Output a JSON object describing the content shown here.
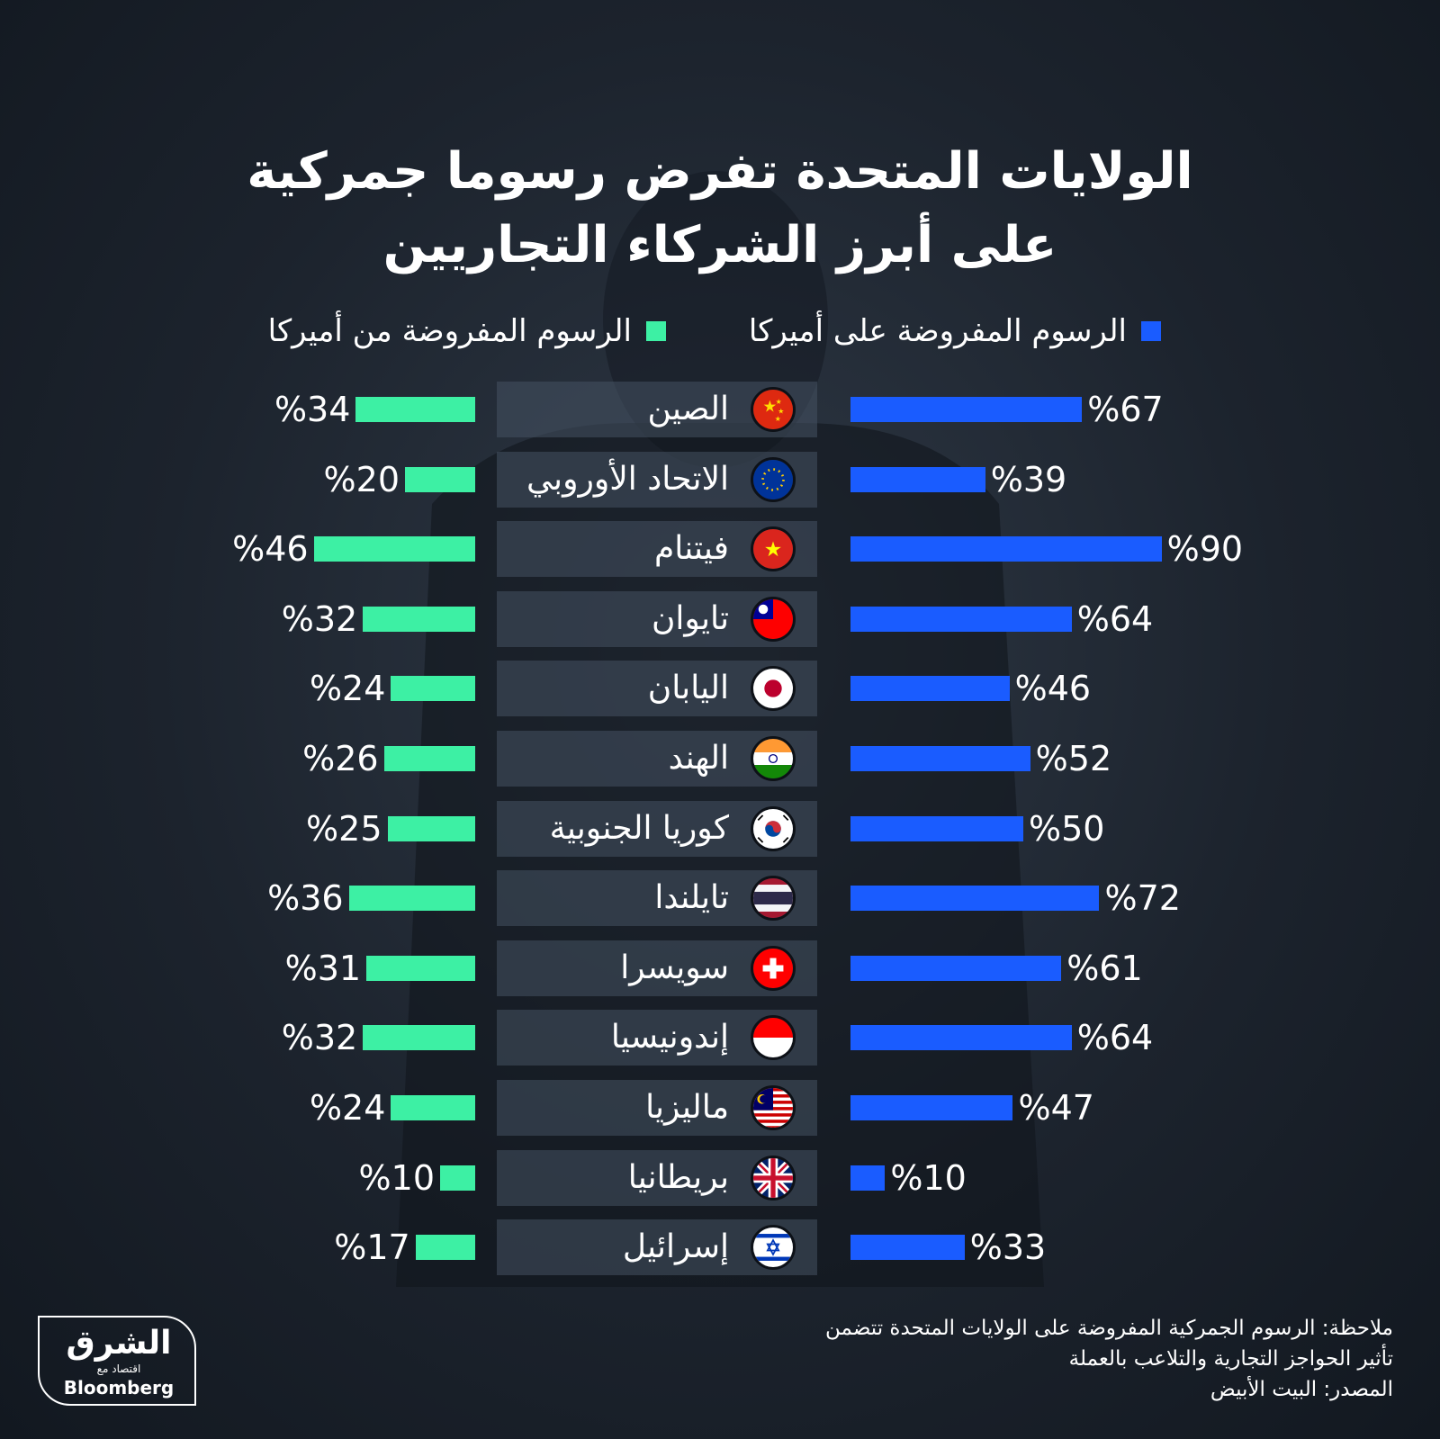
{
  "chart_data": {
    "type": "bar",
    "title_lines": [
      "الولايات المتحدة تفرض رسوما جمركية",
      "على أبرز الشركاء التجاريين"
    ],
    "legend": [
      {
        "label": "الرسوم المفروضة على أميركا",
        "color": "#1a5cff"
      },
      {
        "label": "الرسوم المفروضة من أميركا",
        "color": "#3df0a4"
      }
    ],
    "value_prefix": "%",
    "xlim": [
      0,
      100
    ],
    "categories": [
      {
        "name": "الصين",
        "flag": "china-flag-icon",
        "on_us": 67,
        "from_us": 34
      },
      {
        "name": "الاتحاد الأوروبي",
        "flag": "eu-flag-icon",
        "on_us": 39,
        "from_us": 20
      },
      {
        "name": "فيتنام",
        "flag": "vietnam-flag-icon",
        "on_us": 90,
        "from_us": 46
      },
      {
        "name": "تايوان",
        "flag": "taiwan-flag-icon",
        "on_us": 64,
        "from_us": 32
      },
      {
        "name": "اليابان",
        "flag": "japan-flag-icon",
        "on_us": 46,
        "from_us": 24
      },
      {
        "name": "الهند",
        "flag": "india-flag-icon",
        "on_us": 52,
        "from_us": 26
      },
      {
        "name": "كوريا الجنوبية",
        "flag": "south-korea-flag-icon",
        "on_us": 50,
        "from_us": 25
      },
      {
        "name": "تايلندا",
        "flag": "thailand-flag-icon",
        "on_us": 72,
        "from_us": 36
      },
      {
        "name": "سويسرا",
        "flag": "switzerland-flag-icon",
        "on_us": 61,
        "from_us": 31
      },
      {
        "name": "إندونيسيا",
        "flag": "indonesia-flag-icon",
        "on_us": 64,
        "from_us": 32
      },
      {
        "name": "ماليزيا",
        "flag": "malaysia-flag-icon",
        "on_us": 47,
        "from_us": 24
      },
      {
        "name": "بريطانيا",
        "flag": "uk-flag-icon",
        "on_us": 10,
        "from_us": 10
      },
      {
        "name": "إسرائيل",
        "flag": "israel-flag-icon",
        "on_us": 33,
        "from_us": 17
      }
    ]
  },
  "footnotes": [
    "ملاحظة: الرسوم الجمركية المفروضة على الولايات المتحدة تتضمن",
    "تأثير الحواجز التجارية والتلاعب بالعملة",
    "المصدر: البيت الأبيض"
  ],
  "logo": {
    "arabic": "الشرق",
    "sub": "اقتصاد مع",
    "english": "Bloomberg"
  }
}
